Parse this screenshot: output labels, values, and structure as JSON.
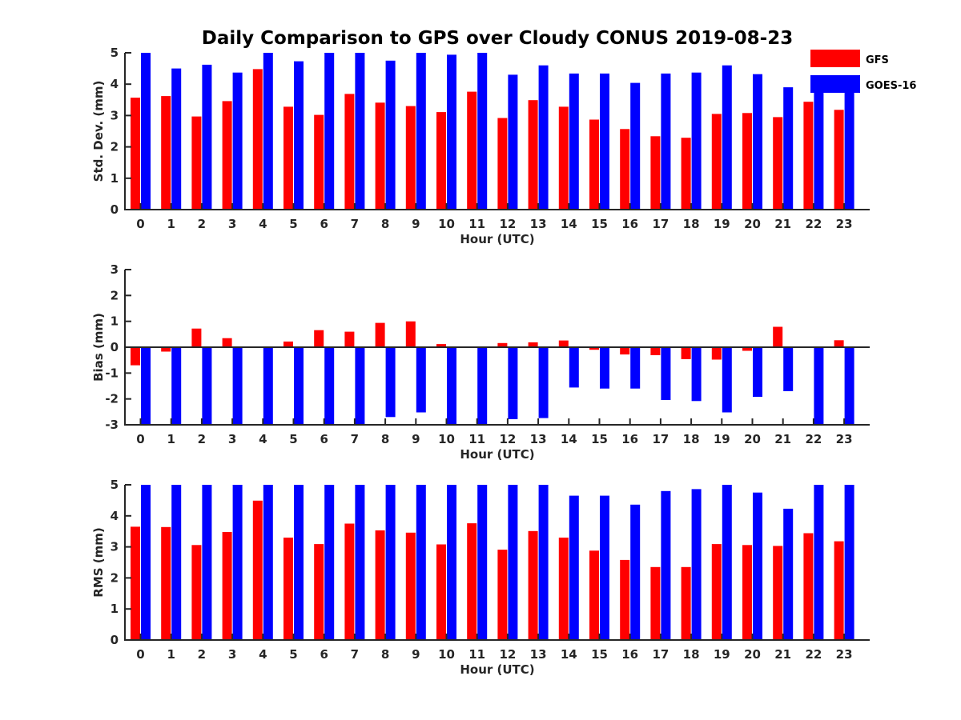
{
  "figure_title": "Daily Comparison to GPS over Cloudy CONUS 2019-08-23",
  "colors": {
    "gfs": "#ff0000",
    "goes": "#0000ff",
    "axis": "#262626"
  },
  "legend": [
    {
      "name": "GFS",
      "color": "#ff0000"
    },
    {
      "name": "GOES-16",
      "color": "#0000ff"
    }
  ],
  "chart_data": [
    {
      "type": "bar",
      "title": "Daily Comparison to GPS over Cloudy CONUS 2019-08-23",
      "xlabel": "Hour (UTC)",
      "ylabel": "Std. Dev. (mm)",
      "ylim": [
        0,
        5
      ],
      "yticks": [
        0,
        1,
        2,
        3,
        4,
        5
      ],
      "categories": [
        "0",
        "1",
        "2",
        "3",
        "4",
        "5",
        "6",
        "7",
        "8",
        "9",
        "10",
        "11",
        "12",
        "13",
        "14",
        "15",
        "16",
        "17",
        "18",
        "19",
        "20",
        "21",
        "22",
        "23"
      ],
      "legend_position": "top-right",
      "series": [
        {
          "name": "GFS",
          "color": "#ff0000",
          "values": [
            3.57,
            3.62,
            2.97,
            3.46,
            4.48,
            3.28,
            3.02,
            3.69,
            3.41,
            3.3,
            3.11,
            3.76,
            2.92,
            3.49,
            3.28,
            2.87,
            2.57,
            2.34,
            2.29,
            3.05,
            3.08,
            2.95,
            3.44,
            3.18
          ]
        },
        {
          "name": "GOES-16",
          "color": "#0000ff",
          "values": [
            5.0,
            4.5,
            4.62,
            4.37,
            5.0,
            4.73,
            5.0,
            5.0,
            4.75,
            5.0,
            4.94,
            5.0,
            4.3,
            4.6,
            4.34,
            4.34,
            4.04,
            4.34,
            4.37,
            4.6,
            4.32,
            3.9,
            3.92,
            3.8
          ]
        }
      ]
    },
    {
      "type": "bar",
      "xlabel": "Hour (UTC)",
      "ylabel": "Bias (mm)",
      "ylim": [
        -3,
        3
      ],
      "yticks": [
        -3,
        -2,
        -1,
        0,
        1,
        2,
        3
      ],
      "categories": [
        "0",
        "1",
        "2",
        "3",
        "4",
        "5",
        "6",
        "7",
        "8",
        "9",
        "10",
        "11",
        "12",
        "13",
        "14",
        "15",
        "16",
        "17",
        "18",
        "19",
        "20",
        "21",
        "22",
        "23"
      ],
      "series": [
        {
          "name": "GFS",
          "color": "#ff0000",
          "values": [
            -0.7,
            -0.17,
            0.72,
            0.35,
            -0.03,
            0.22,
            0.66,
            0.6,
            0.94,
            1.0,
            0.12,
            -0.03,
            0.16,
            0.19,
            0.26,
            -0.1,
            -0.28,
            -0.31,
            -0.46,
            -0.48,
            -0.14,
            0.79,
            -0.03,
            0.27
          ]
        },
        {
          "name": "GOES-16",
          "color": "#0000ff",
          "values": [
            -3.0,
            -3.0,
            -3.0,
            -3.0,
            -3.0,
            -3.0,
            -3.0,
            -3.0,
            -2.7,
            -2.52,
            -3.0,
            -3.0,
            -2.78,
            -2.74,
            -1.56,
            -1.6,
            -1.6,
            -2.04,
            -2.08,
            -2.52,
            -1.92,
            -1.7,
            -3.0,
            -3.0
          ]
        }
      ]
    },
    {
      "type": "bar",
      "xlabel": "Hour (UTC)",
      "ylabel": "RMS (mm)",
      "ylim": [
        0,
        5
      ],
      "yticks": [
        0,
        1,
        2,
        3,
        4,
        5
      ],
      "categories": [
        "0",
        "1",
        "2",
        "3",
        "4",
        "5",
        "6",
        "7",
        "8",
        "9",
        "10",
        "11",
        "12",
        "13",
        "14",
        "15",
        "16",
        "17",
        "18",
        "19",
        "20",
        "21",
        "22",
        "23"
      ],
      "series": [
        {
          "name": "GFS",
          "color": "#ff0000",
          "values": [
            3.65,
            3.64,
            3.06,
            3.48,
            4.49,
            3.3,
            3.09,
            3.75,
            3.53,
            3.46,
            3.08,
            3.76,
            2.91,
            3.51,
            3.3,
            2.88,
            2.58,
            2.35,
            2.35,
            3.09,
            3.06,
            3.03,
            3.44,
            3.18
          ]
        },
        {
          "name": "GOES-16",
          "color": "#0000ff",
          "values": [
            5.0,
            5.0,
            5.0,
            5.0,
            5.0,
            5.0,
            5.0,
            5.0,
            5.0,
            5.0,
            5.0,
            5.0,
            5.0,
            5.0,
            4.65,
            4.65,
            4.36,
            4.8,
            4.86,
            5.0,
            4.75,
            4.23,
            5.0,
            5.0
          ]
        }
      ]
    }
  ]
}
